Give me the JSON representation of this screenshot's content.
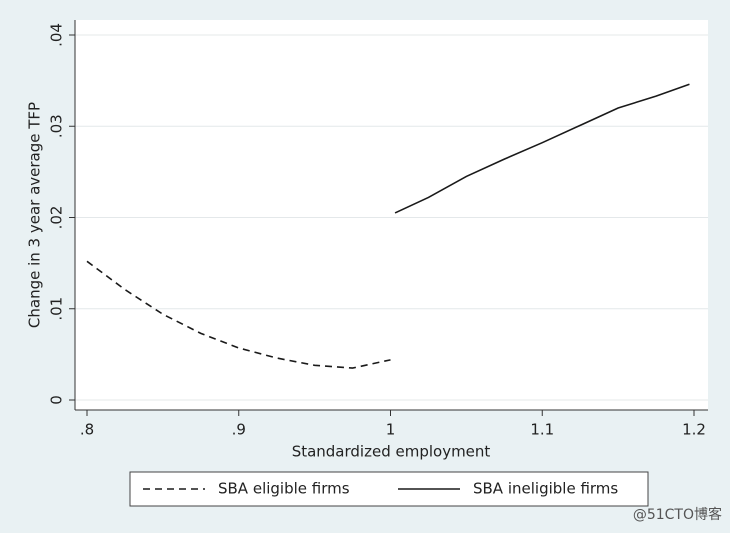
{
  "chart_data": {
    "type": "line",
    "xlabel": "Standardized employment",
    "ylabel": "Change in 3 year average TFP",
    "xlim": [
      0.8,
      1.2
    ],
    "ylim": [
      0,
      0.04
    ],
    "xticks": [
      {
        "value": 0.8,
        "label": ".8"
      },
      {
        "value": 0.9,
        "label": ".9"
      },
      1,
      1.1,
      1.2
    ],
    "yticks": [
      0,
      {
        "value": 0.01,
        "label": ".01"
      },
      {
        "value": 0.02,
        "label": ".02"
      },
      {
        "value": 0.03,
        "label": ".03"
      },
      {
        "value": 0.04,
        "label": ".04"
      }
    ],
    "grid": true,
    "legend": "bottom",
    "series": [
      {
        "name": "SBA eligible firms",
        "color": "#1a1a1a",
        "dash": true,
        "x": [
          0.8,
          0.825,
          0.85,
          0.875,
          0.9,
          0.925,
          0.95,
          0.975,
          1.0
        ],
        "values": [
          0.0152,
          0.0121,
          0.0094,
          0.0073,
          0.0057,
          0.0046,
          0.0038,
          0.0035,
          0.0044
        ]
      },
      {
        "name": "SBA ineligible firms",
        "color": "#1a1a1a",
        "dash": false,
        "x": [
          1.003,
          1.025,
          1.05,
          1.075,
          1.1,
          1.125,
          1.15,
          1.175,
          1.197
        ],
        "values": [
          0.0205,
          0.0222,
          0.0245,
          0.0264,
          0.0282,
          0.0301,
          0.032,
          0.0333,
          0.0346
        ]
      }
    ]
  },
  "watermark": "@51CTO博客"
}
